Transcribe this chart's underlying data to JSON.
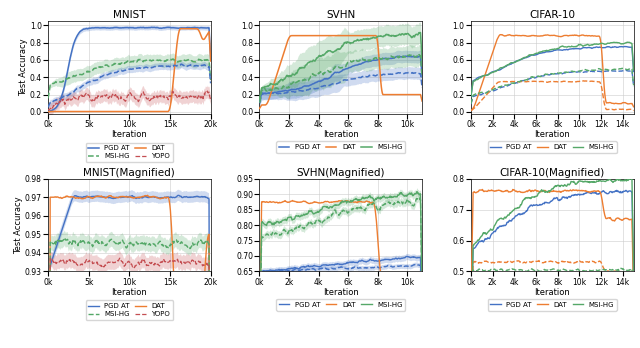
{
  "colors": {
    "pgd_at": "#4472c4",
    "dat": "#ed7d31",
    "msi_hg": "#55a868",
    "yopo": "#c44e52"
  },
  "mnist": {
    "title": "MNIST",
    "xlim": [
      0,
      20000
    ],
    "ylim": [
      -0.02,
      1.05
    ],
    "xticks": [
      0,
      5000,
      10000,
      15000,
      20000
    ],
    "xticklabels": [
      "0k",
      "5k",
      "10k",
      "15k",
      "20k"
    ],
    "yticks": [
      0.0,
      0.2,
      0.4,
      0.6,
      0.8,
      1.0
    ]
  },
  "svhn": {
    "title": "SVHN",
    "xlim": [
      0,
      11000
    ],
    "ylim": [
      -0.02,
      1.05
    ],
    "xticks": [
      0,
      2000,
      4000,
      6000,
      8000,
      10000
    ],
    "xticklabels": [
      "0k",
      "2k",
      "4k",
      "6k",
      "8k",
      "10k"
    ],
    "yticks": [
      0.0,
      0.2,
      0.4,
      0.6,
      0.8,
      1.0
    ]
  },
  "cifar10": {
    "title": "CIFAR-10",
    "xlim": [
      0,
      15000
    ],
    "ylim": [
      -0.02,
      1.05
    ],
    "xticks": [
      0,
      2000,
      4000,
      6000,
      8000,
      10000,
      12000,
      14000
    ],
    "xticklabels": [
      "0k",
      "2k",
      "4k",
      "6k",
      "8k",
      "10k",
      "12k",
      "14k"
    ],
    "yticks": [
      0.0,
      0.2,
      0.4,
      0.6,
      0.8,
      1.0
    ]
  },
  "mnist_mag": {
    "title": "MNIST(Magnified)",
    "xlim": [
      0,
      20000
    ],
    "ylim": [
      0.93,
      0.98
    ],
    "xticks": [
      0,
      5000,
      10000,
      15000,
      20000
    ],
    "xticklabels": [
      "0k",
      "5k",
      "10k",
      "15k",
      "20k"
    ],
    "yticks": [
      0.93,
      0.94,
      0.95,
      0.96,
      0.97,
      0.98
    ]
  },
  "svhn_mag": {
    "title": "SVHN(Magnified)",
    "xlim": [
      0,
      11000
    ],
    "ylim": [
      0.65,
      0.95
    ],
    "xticks": [
      0,
      2000,
      4000,
      6000,
      8000,
      10000
    ],
    "xticklabels": [
      "0k",
      "2k",
      "4k",
      "6k",
      "8k",
      "10k"
    ],
    "yticks": [
      0.65,
      0.7,
      0.75,
      0.8,
      0.85,
      0.9,
      0.95
    ]
  },
  "cifar10_mag": {
    "title": "CIFAR-10(Magnified)",
    "xlim": [
      0,
      15000
    ],
    "ylim": [
      0.5,
      0.8
    ],
    "xticks": [
      0,
      2000,
      4000,
      6000,
      8000,
      10000,
      12000,
      14000
    ],
    "xticklabels": [
      "0k",
      "2k",
      "4k",
      "6k",
      "8k",
      "10k",
      "12k",
      "14k"
    ],
    "yticks": [
      0.5,
      0.6,
      0.7,
      0.8
    ]
  }
}
